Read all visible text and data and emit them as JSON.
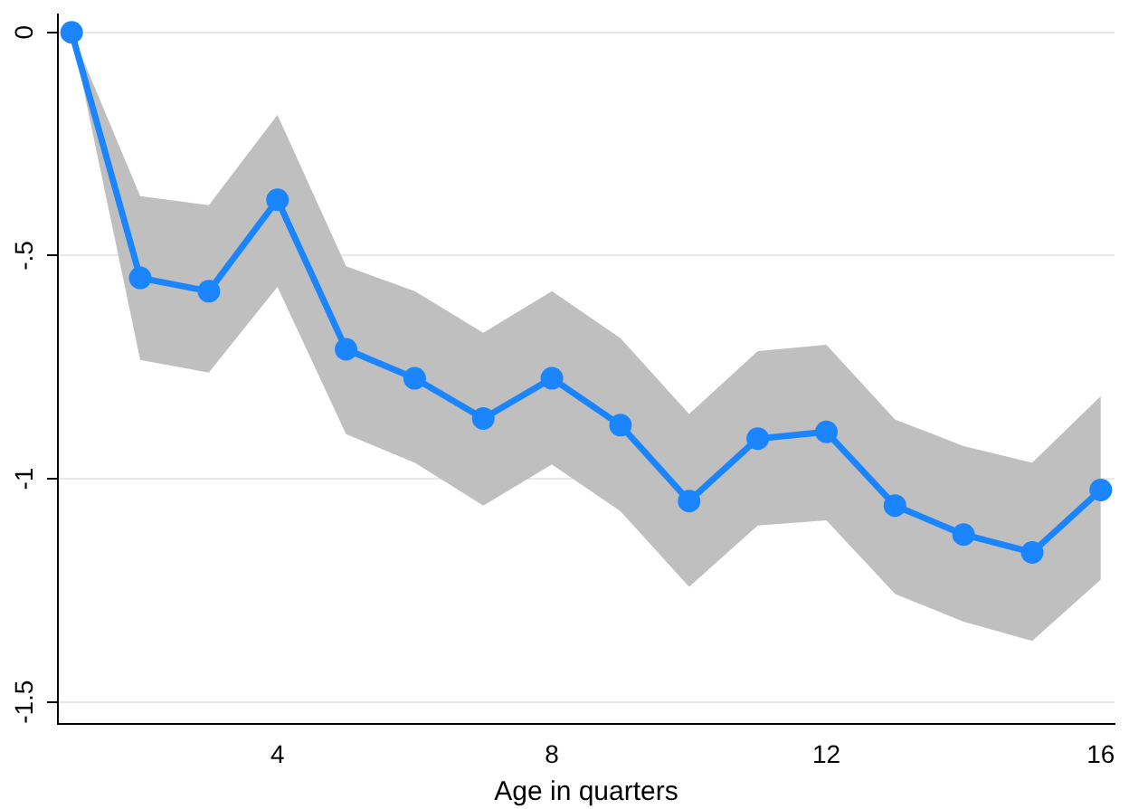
{
  "chart_data": {
    "type": "line",
    "xlabel": "Age in quarters",
    "x": [
      1,
      2,
      3,
      4,
      5,
      6,
      7,
      8,
      9,
      10,
      11,
      12,
      13,
      14,
      15,
      16
    ],
    "series": [
      {
        "color": "#1a85ff",
        "values": [
          0,
          -0.55,
          -0.58,
          -0.375,
          -0.71,
          -0.775,
          -0.865,
          -0.775,
          -0.88,
          -1.05,
          -0.91,
          -0.895,
          -1.06,
          -1.125,
          -1.165,
          -1.025
        ],
        "lower": [
          0,
          -0.734,
          -0.762,
          -0.57,
          -0.9,
          -0.964,
          -1.06,
          -0.968,
          -1.073,
          -1.242,
          -1.105,
          -1.093,
          -1.258,
          -1.32,
          -1.363,
          -1.226
        ],
        "upper": [
          0,
          -0.367,
          -0.387,
          -0.185,
          -0.524,
          -0.58,
          -0.673,
          -0.58,
          -0.685,
          -0.855,
          -0.714,
          -0.7,
          -0.867,
          -0.927,
          -0.964,
          -0.815
        ]
      }
    ],
    "xlim": [
      0.8,
      16.2
    ],
    "xticks": [
      4,
      8,
      12,
      16
    ],
    "ylim": [
      -1.55,
      0.04
    ],
    "yticks": [
      {
        "value": -1.5,
        "label": "-1.5"
      },
      {
        "value": -1,
        "label": "-1"
      },
      {
        "value": -0.5,
        "label": "-.5"
      },
      {
        "value": 0,
        "label": "0"
      }
    ],
    "grid": "y",
    "legend": false,
    "marker": "circle",
    "line_style": "solid"
  }
}
